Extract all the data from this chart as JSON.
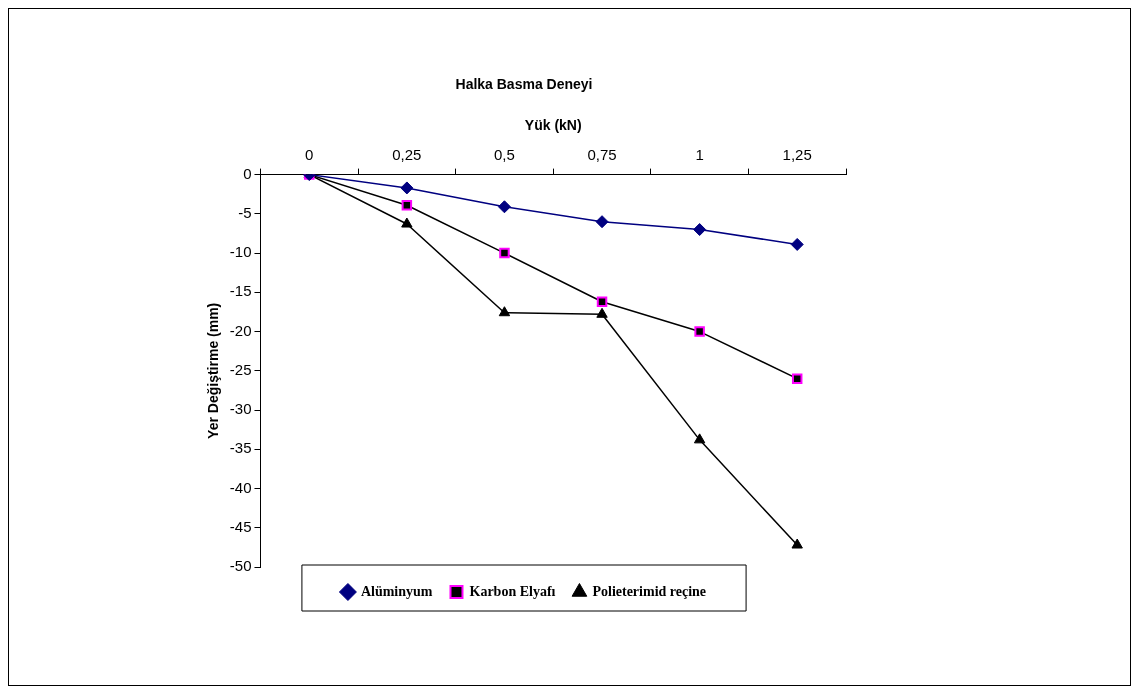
{
  "chart_data": {
    "type": "line",
    "title": "Halka Basma Deneyi",
    "xlabel": "Yük (kN)",
    "ylabel": "Yer Değiştirme (mm)",
    "categories": [
      "0",
      "0,25",
      "0,5",
      "0,75",
      "1",
      "1,25"
    ],
    "ylim": [
      -50,
      0
    ],
    "yticks": [
      -50,
      -45,
      -40,
      -35,
      -30,
      -25,
      -20,
      -15,
      -10,
      -5,
      0
    ],
    "grid": false,
    "legend": "bottom",
    "series": [
      {
        "name": "Alüminyum",
        "color": "#000080",
        "marker": "diamond",
        "values": [
          0,
          -1.7,
          -4.1,
          -6.0,
          -7.0,
          -8.9
        ]
      },
      {
        "name": "Karbon Elyafı",
        "color": "#ff00ff",
        "marker": "square",
        "values": [
          0,
          -3.9,
          -10.0,
          -16.2,
          -20.0,
          -26.0
        ]
      },
      {
        "name": "Polieterimid reçine",
        "color": "#000000",
        "marker": "triangle",
        "values": [
          0,
          -6.3,
          -17.6,
          -17.8,
          -33.8,
          -47.2
        ]
      }
    ]
  }
}
